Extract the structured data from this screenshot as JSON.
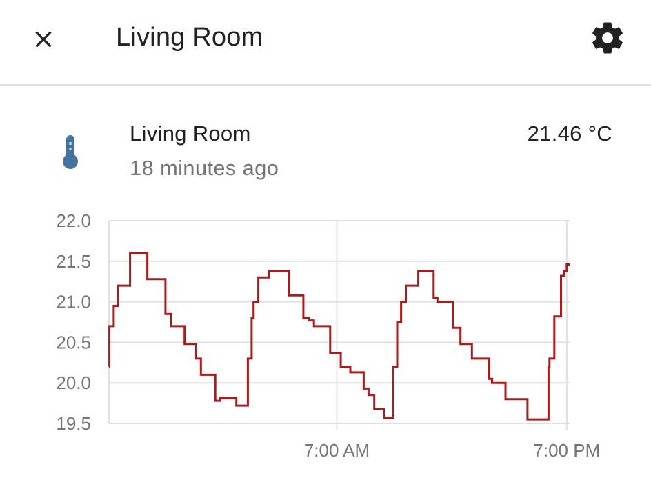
{
  "header": {
    "title": "Living Room"
  },
  "icons": {
    "close": "close-icon",
    "settings": "gear-icon",
    "entity": "thermometer-icon"
  },
  "entity": {
    "name": "Living Room",
    "last_changed": "18 minutes ago",
    "state": "21.46 °C"
  },
  "colors": {
    "line": "#aa1c1c",
    "icon": "#44739e",
    "grid": "#e0e0e0"
  },
  "chart_data": {
    "type": "line",
    "step": true,
    "title": "",
    "xlabel": "",
    "ylabel": "",
    "ylim": [
      19.5,
      22.0
    ],
    "yticks": [
      "22.0",
      "21.5",
      "21.0",
      "20.5",
      "20.0",
      "19.5"
    ],
    "xticks": [
      {
        "t": 12,
        "label": "7:00 AM"
      },
      {
        "t": 24,
        "label": "7:00 PM"
      }
    ],
    "xlim": [
      0.1,
      24.15
    ],
    "grid": true,
    "series": [
      {
        "values": [
          [
            0.1,
            20.2
          ],
          [
            0.12,
            20.7
          ],
          [
            0.35,
            20.95
          ],
          [
            0.55,
            21.2
          ],
          [
            1.2,
            21.6
          ],
          [
            2.1,
            21.28
          ],
          [
            3.05,
            20.85
          ],
          [
            3.35,
            20.7
          ],
          [
            4.05,
            20.48
          ],
          [
            4.65,
            20.3
          ],
          [
            4.9,
            20.1
          ],
          [
            5.65,
            19.78
          ],
          [
            5.9,
            19.81
          ],
          [
            6.75,
            19.72
          ],
          [
            7.35,
            20.3
          ],
          [
            7.55,
            20.8
          ],
          [
            7.65,
            21.0
          ],
          [
            7.9,
            21.3
          ],
          [
            8.45,
            21.38
          ],
          [
            9.5,
            21.08
          ],
          [
            10.25,
            20.8
          ],
          [
            10.55,
            20.77
          ],
          [
            10.8,
            20.7
          ],
          [
            11.65,
            20.37
          ],
          [
            12.2,
            20.2
          ],
          [
            12.7,
            20.13
          ],
          [
            13.4,
            19.93
          ],
          [
            13.65,
            19.85
          ],
          [
            13.95,
            19.68
          ],
          [
            14.45,
            19.57
          ],
          [
            14.95,
            20.2
          ],
          [
            15.15,
            20.75
          ],
          [
            15.35,
            21.0
          ],
          [
            15.6,
            21.2
          ],
          [
            16.25,
            21.38
          ],
          [
            17.05,
            21.05
          ],
          [
            17.25,
            21.0
          ],
          [
            18.05,
            20.68
          ],
          [
            18.45,
            20.48
          ],
          [
            19.05,
            20.3
          ],
          [
            19.95,
            20.05
          ],
          [
            20.1,
            20.0
          ],
          [
            20.8,
            19.8
          ],
          [
            21.95,
            19.55
          ],
          [
            23.05,
            20.2
          ],
          [
            23.1,
            20.3
          ],
          [
            23.35,
            20.82
          ],
          [
            23.7,
            21.32
          ],
          [
            23.85,
            21.38
          ],
          [
            24.0,
            21.46
          ],
          [
            24.15,
            21.46
          ]
        ]
      }
    ]
  }
}
